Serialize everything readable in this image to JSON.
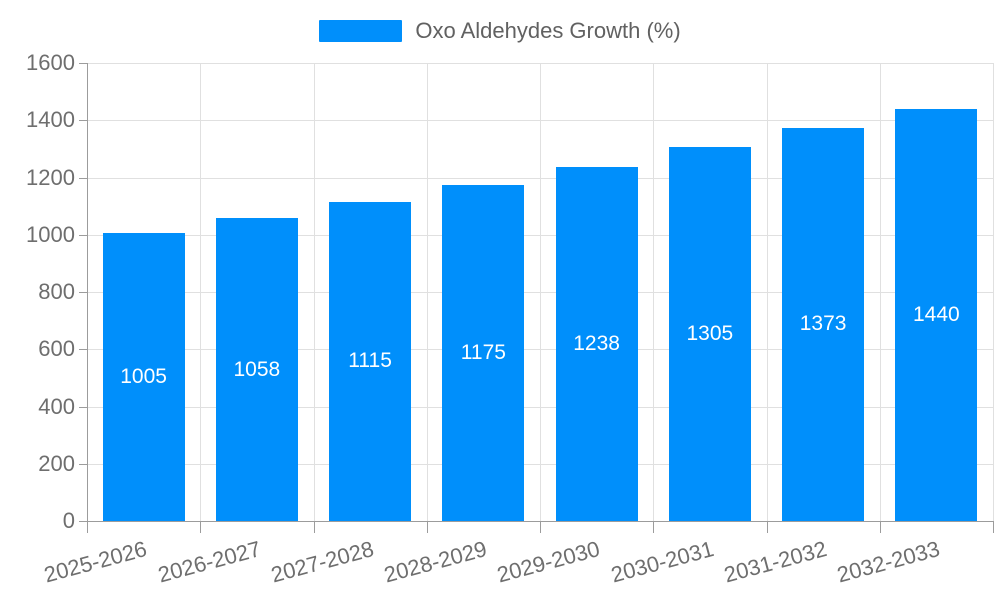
{
  "legend": {
    "label": "Oxo Aldehydes Growth (%)"
  },
  "chart_data": {
    "type": "bar",
    "title": "Oxo Aldehydes Growth (%)",
    "categories": [
      "2025-2026",
      "2026-2027",
      "2027-2028",
      "2028-2029",
      "2029-2030",
      "2030-2031",
      "2031-2032",
      "2032-2033"
    ],
    "series": [
      {
        "name": "Oxo Aldehydes Growth (%)",
        "values": [
          1005,
          1058,
          1115,
          1175,
          1238,
          1305,
          1373,
          1440
        ]
      }
    ],
    "xlabel": "",
    "ylabel": "",
    "ylim": [
      0,
      1600
    ],
    "yticks": [
      0,
      200,
      400,
      600,
      800,
      1000,
      1200,
      1400,
      1600
    ],
    "grid": true,
    "legend_position": "top",
    "x_label_rotation": -15,
    "bar_color": "#008FFB",
    "value_label_color": "#ffffff",
    "axis_text_color": "#6e6e6e",
    "grid_color": "#e0e0e0",
    "axis_line_color": "#9c9c9c"
  }
}
